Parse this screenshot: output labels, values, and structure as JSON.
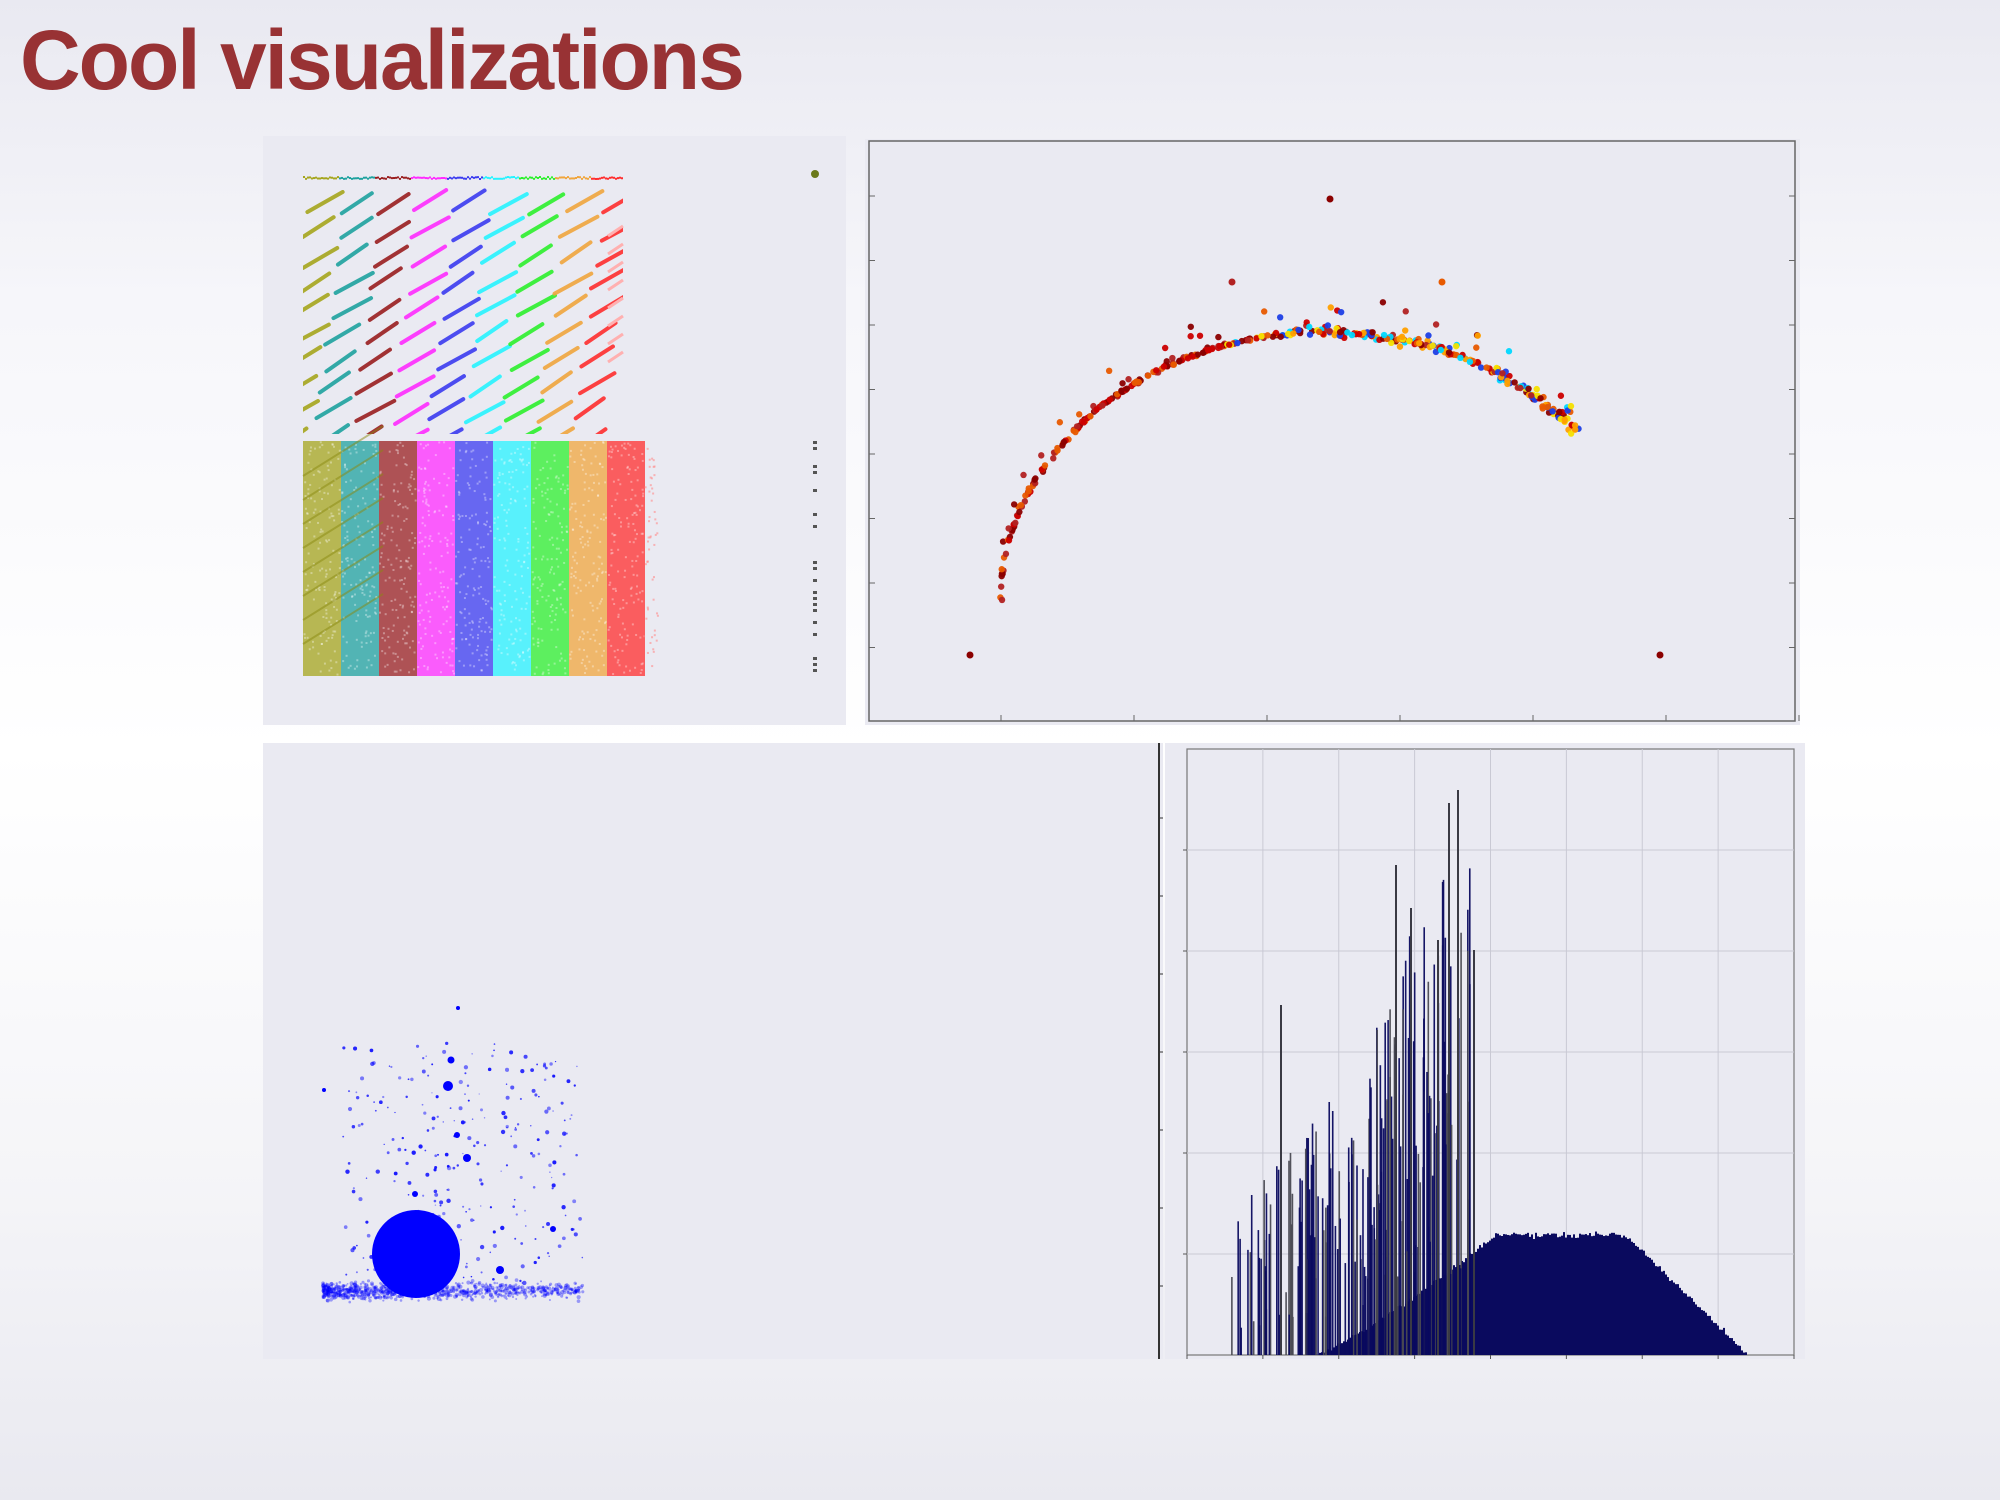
{
  "slide": {
    "title": "Cool visualizations",
    "title_color": "#983234"
  },
  "panel_a": {
    "palette": [
      "#a6a61e",
      "#1fa29f",
      "#9a1f20",
      "#ff2cff",
      "#3b3bf0",
      "#27f3ff",
      "#2df02d",
      "#f0a63e",
      "#ff2e2e"
    ]
  },
  "panel_b": {
    "point_colors": [
      "#8b0000",
      "#b22222",
      "#cc0000",
      "#e85a00",
      "#ffa000",
      "#f5e000",
      "#00d8ff",
      "#1e3fe6"
    ]
  },
  "panel_c": {
    "color": "#0000ff"
  },
  "panel_d": {
    "bar_color": "#0a0a5e",
    "grid": true
  }
}
